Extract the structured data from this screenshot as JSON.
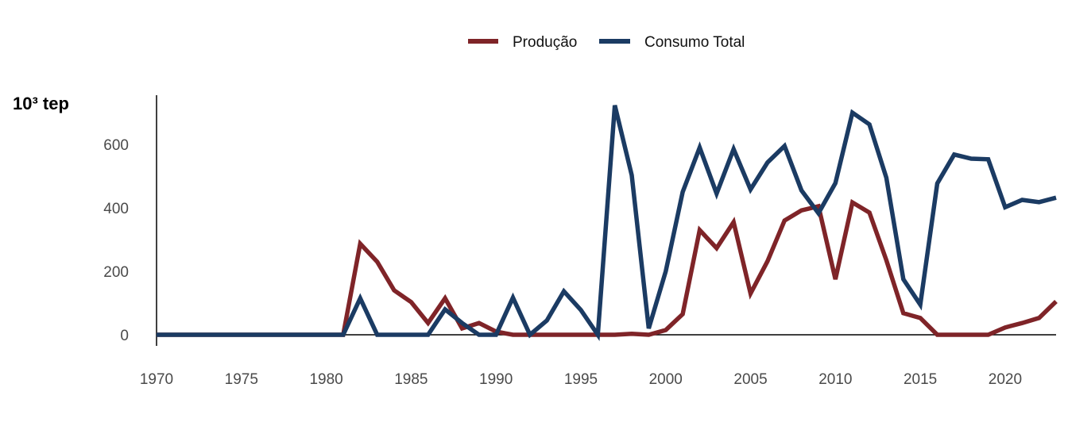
{
  "chart_data": {
    "type": "line",
    "ylabel": "10³ tep",
    "ylim": [
      0,
      760
    ],
    "xlim": [
      1970,
      2023
    ],
    "yticks": [
      0,
      200,
      400,
      600
    ],
    "xticks": [
      1970,
      1975,
      1980,
      1985,
      1990,
      1995,
      2000,
      2005,
      2010,
      2015,
      2020
    ],
    "grid": false,
    "legend_position": "top-center",
    "x": [
      1970,
      1971,
      1972,
      1973,
      1974,
      1975,
      1976,
      1977,
      1978,
      1979,
      1980,
      1981,
      1982,
      1983,
      1984,
      1985,
      1986,
      1987,
      1988,
      1989,
      1990,
      1991,
      1992,
      1993,
      1994,
      1995,
      1996,
      1997,
      1998,
      1999,
      2000,
      2001,
      2002,
      2003,
      2004,
      2005,
      2006,
      2007,
      2008,
      2009,
      2010,
      2011,
      2012,
      2013,
      2014,
      2015,
      2016,
      2017,
      2018,
      2019,
      2020,
      2021,
      2022,
      2023
    ],
    "series": [
      {
        "name": "Produção",
        "color": "#7f2428",
        "values": [
          0,
          0,
          0,
          0,
          0,
          0,
          0,
          0,
          0,
          0,
          0,
          0,
          287,
          230,
          140,
          103,
          37,
          115,
          20,
          37,
          10,
          0,
          0,
          0,
          0,
          0,
          0,
          0,
          3,
          0,
          15,
          65,
          330,
          273,
          355,
          130,
          232,
          360,
          392,
          405,
          175,
          417,
          385,
          235,
          68,
          53,
          0,
          0,
          0,
          0,
          23,
          37,
          53,
          105
        ]
      },
      {
        "name": "Consumo Total",
        "color": "#1b3b63",
        "values": [
          0,
          0,
          0,
          0,
          0,
          0,
          0,
          0,
          0,
          0,
          0,
          0,
          115,
          0,
          0,
          0,
          0,
          80,
          37,
          0,
          0,
          117,
          0,
          45,
          137,
          78,
          0,
          723,
          503,
          20,
          200,
          450,
          590,
          445,
          585,
          458,
          543,
          595,
          455,
          383,
          478,
          700,
          663,
          495,
          175,
          95,
          477,
          568,
          555,
          553,
          402,
          425,
          418,
          432
        ]
      }
    ]
  }
}
